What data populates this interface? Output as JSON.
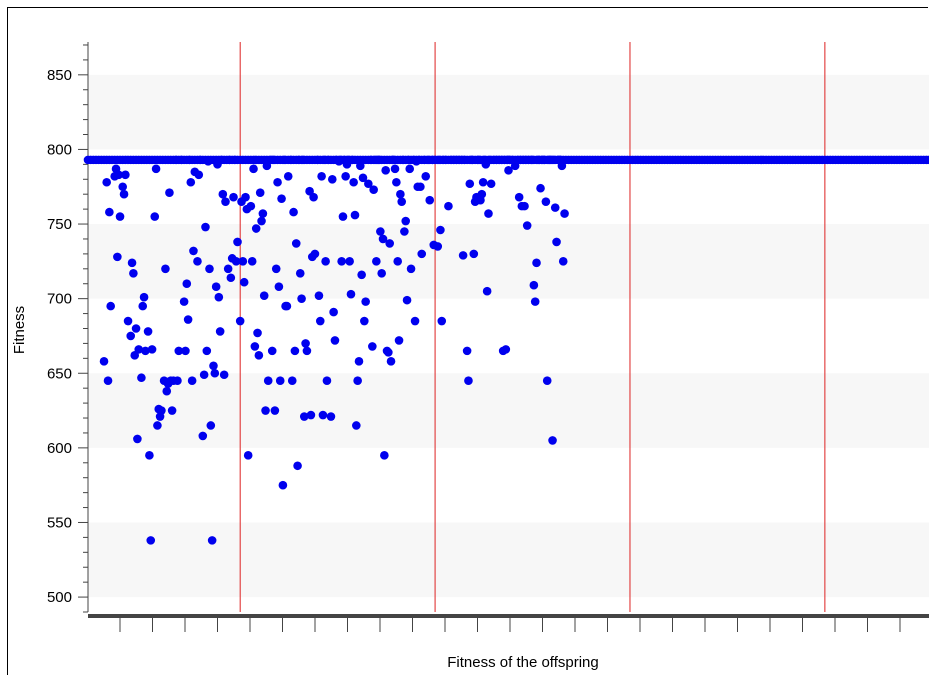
{
  "chart_data": {
    "type": "scatter",
    "title": "",
    "xlabel": "Fitness of the offspring",
    "ylabel": "Fitness",
    "ylim": [
      490,
      872
    ],
    "yticks": [
      500,
      550,
      600,
      650,
      700,
      750,
      800,
      850
    ],
    "grid": "alternating horizontal bands",
    "legend": "none",
    "colors": {
      "points": "#0000ee",
      "separators": "#dd2222",
      "band": "#f7f7f7",
      "axis": "#444444"
    },
    "separator_x": [
      114,
      260,
      406,
      552
    ],
    "xlim": [
      0,
      630
    ],
    "series": [
      {
        "points": [
          [
            12,
            658
          ],
          [
            15,
            645
          ],
          [
            14,
            778
          ],
          [
            16,
            758
          ],
          [
            17,
            695
          ],
          [
            20,
            782
          ],
          [
            21,
            787
          ],
          [
            22,
            728
          ],
          [
            23,
            783
          ],
          [
            24,
            755
          ],
          [
            26,
            775
          ],
          [
            27,
            770
          ],
          [
            28,
            783
          ],
          [
            30,
            685
          ],
          [
            32,
            675
          ],
          [
            33,
            724
          ],
          [
            34,
            717
          ],
          [
            35,
            662
          ],
          [
            36,
            680
          ],
          [
            37,
            606
          ],
          [
            38,
            666
          ],
          [
            40,
            647
          ],
          [
            41,
            695
          ],
          [
            42,
            701
          ],
          [
            43,
            665
          ],
          [
            45,
            678
          ],
          [
            46,
            595
          ],
          [
            47,
            538
          ],
          [
            48,
            666
          ],
          [
            50,
            755
          ],
          [
            51,
            787
          ],
          [
            52,
            615
          ],
          [
            53,
            626
          ],
          [
            54,
            621
          ],
          [
            55,
            625
          ],
          [
            57,
            645
          ],
          [
            58,
            720
          ],
          [
            59,
            638
          ],
          [
            60,
            643
          ],
          [
            61,
            771
          ],
          [
            62,
            645
          ],
          [
            63,
            625
          ],
          [
            64,
            645
          ],
          [
            66,
            793
          ],
          [
            67,
            645
          ],
          [
            68,
            665
          ],
          [
            70,
            793
          ],
          [
            72,
            698
          ],
          [
            73,
            665
          ],
          [
            74,
            710
          ],
          [
            75,
            686
          ],
          [
            76,
            793
          ],
          [
            77,
            778
          ],
          [
            78,
            645
          ],
          [
            79,
            732
          ],
          [
            80,
            785
          ],
          [
            82,
            725
          ],
          [
            83,
            783
          ],
          [
            84,
            793
          ],
          [
            86,
            608
          ],
          [
            87,
            649
          ],
          [
            88,
            748
          ],
          [
            89,
            665
          ],
          [
            90,
            792
          ],
          [
            91,
            720
          ],
          [
            92,
            615
          ],
          [
            93,
            538
          ],
          [
            94,
            655
          ],
          [
            95,
            650
          ],
          [
            96,
            708
          ],
          [
            97,
            790
          ],
          [
            98,
            701
          ],
          [
            99,
            678
          ],
          [
            100,
            793
          ],
          [
            101,
            770
          ],
          [
            102,
            649
          ],
          [
            103,
            765
          ],
          [
            105,
            720
          ],
          [
            106,
            793
          ],
          [
            107,
            714
          ],
          [
            108,
            727
          ],
          [
            109,
            768
          ],
          [
            110,
            793
          ],
          [
            111,
            725
          ],
          [
            112,
            738
          ],
          [
            114,
            685
          ],
          [
            115,
            765
          ],
          [
            116,
            725
          ],
          [
            117,
            711
          ],
          [
            118,
            768
          ],
          [
            119,
            760
          ],
          [
            120,
            595
          ],
          [
            122,
            762
          ],
          [
            123,
            725
          ],
          [
            124,
            787
          ],
          [
            125,
            668
          ],
          [
            126,
            747
          ],
          [
            127,
            677
          ],
          [
            128,
            662
          ],
          [
            129,
            771
          ],
          [
            130,
            752
          ],
          [
            131,
            757
          ],
          [
            132,
            702
          ],
          [
            133,
            625
          ],
          [
            134,
            789
          ],
          [
            135,
            645
          ],
          [
            137,
            793
          ],
          [
            138,
            665
          ],
          [
            139,
            793
          ],
          [
            140,
            625
          ],
          [
            141,
            720
          ],
          [
            142,
            778
          ],
          [
            143,
            708
          ],
          [
            144,
            645
          ],
          [
            145,
            767
          ],
          [
            146,
            575
          ],
          [
            147,
            793
          ],
          [
            148,
            695
          ],
          [
            149,
            695
          ],
          [
            150,
            782
          ],
          [
            152,
            793
          ],
          [
            153,
            645
          ],
          [
            154,
            758
          ],
          [
            155,
            665
          ],
          [
            156,
            737
          ],
          [
            157,
            588
          ],
          [
            158,
            793
          ],
          [
            159,
            717
          ],
          [
            160,
            700
          ],
          [
            161,
            793
          ],
          [
            162,
            621
          ],
          [
            163,
            670
          ],
          [
            164,
            665
          ],
          [
            166,
            772
          ],
          [
            167,
            622
          ],
          [
            168,
            728
          ],
          [
            169,
            768
          ],
          [
            170,
            730
          ],
          [
            172,
            793
          ],
          [
            173,
            702
          ],
          [
            174,
            685
          ],
          [
            175,
            782
          ],
          [
            176,
            622
          ],
          [
            177,
            793
          ],
          [
            178,
            725
          ],
          [
            179,
            645
          ],
          [
            180,
            793
          ],
          [
            182,
            621
          ],
          [
            183,
            780
          ],
          [
            184,
            691
          ],
          [
            185,
            672
          ],
          [
            186,
            793
          ],
          [
            188,
            792
          ],
          [
            189,
            793
          ],
          [
            190,
            725
          ],
          [
            191,
            755
          ],
          [
            192,
            793
          ],
          [
            193,
            782
          ],
          [
            194,
            790
          ],
          [
            195,
            793
          ],
          [
            196,
            725
          ],
          [
            197,
            703
          ],
          [
            198,
            793
          ],
          [
            199,
            778
          ],
          [
            200,
            756
          ],
          [
            201,
            615
          ],
          [
            202,
            645
          ],
          [
            203,
            658
          ],
          [
            204,
            789
          ],
          [
            205,
            716
          ],
          [
            206,
            781
          ],
          [
            207,
            685
          ],
          [
            208,
            698
          ],
          [
            210,
            777
          ],
          [
            212,
            793
          ],
          [
            213,
            668
          ],
          [
            214,
            773
          ],
          [
            215,
            793
          ],
          [
            216,
            725
          ],
          [
            217,
            793
          ],
          [
            218,
            793
          ],
          [
            219,
            745
          ],
          [
            220,
            717
          ],
          [
            221,
            740
          ],
          [
            222,
            595
          ],
          [
            223,
            786
          ],
          [
            224,
            665
          ],
          [
            225,
            664
          ],
          [
            226,
            737
          ],
          [
            227,
            658
          ],
          [
            228,
            793
          ],
          [
            229,
            793
          ],
          [
            230,
            787
          ],
          [
            231,
            778
          ],
          [
            232,
            725
          ],
          [
            233,
            672
          ],
          [
            234,
            770
          ],
          [
            235,
            765
          ],
          [
            236,
            793
          ],
          [
            237,
            745
          ],
          [
            238,
            752
          ],
          [
            239,
            699
          ],
          [
            240,
            793
          ],
          [
            241,
            787
          ],
          [
            242,
            720
          ],
          [
            244,
            793
          ],
          [
            245,
            685
          ],
          [
            246,
            792
          ],
          [
            247,
            775
          ],
          [
            248,
            793
          ],
          [
            249,
            775
          ],
          [
            250,
            730
          ],
          [
            252,
            793
          ],
          [
            253,
            782
          ],
          [
            255,
            793
          ],
          [
            256,
            766
          ],
          [
            258,
            793
          ],
          [
            259,
            736
          ],
          [
            260,
            793
          ],
          [
            262,
            735
          ],
          [
            263,
            793
          ],
          [
            264,
            746
          ],
          [
            265,
            685
          ],
          [
            266,
            793
          ],
          [
            268,
            793
          ],
          [
            270,
            762
          ],
          [
            272,
            793
          ],
          [
            274,
            793
          ],
          [
            276,
            793
          ],
          [
            278,
            793
          ],
          [
            280,
            793
          ],
          [
            281,
            729
          ],
          [
            282,
            793
          ],
          [
            284,
            665
          ],
          [
            285,
            645
          ],
          [
            286,
            777
          ],
          [
            287,
            793
          ],
          [
            288,
            793
          ],
          [
            289,
            730
          ],
          [
            290,
            765
          ],
          [
            291,
            768
          ],
          [
            292,
            793
          ],
          [
            293,
            793
          ],
          [
            294,
            766
          ],
          [
            295,
            770
          ],
          [
            296,
            778
          ],
          [
            297,
            793
          ],
          [
            298,
            790
          ],
          [
            299,
            705
          ],
          [
            300,
            757
          ],
          [
            301,
            793
          ],
          [
            302,
            777
          ],
          [
            304,
            793
          ],
          [
            306,
            793
          ],
          [
            308,
            793
          ],
          [
            310,
            793
          ],
          [
            311,
            665
          ],
          [
            312,
            793
          ],
          [
            313,
            666
          ],
          [
            314,
            793
          ],
          [
            315,
            786
          ],
          [
            316,
            793
          ],
          [
            318,
            793
          ],
          [
            320,
            789
          ],
          [
            322,
            793
          ],
          [
            323,
            768
          ],
          [
            324,
            793
          ],
          [
            325,
            762
          ],
          [
            326,
            793
          ],
          [
            327,
            762
          ],
          [
            328,
            793
          ],
          [
            329,
            749
          ],
          [
            330,
            793
          ],
          [
            332,
            793
          ],
          [
            333,
            793
          ],
          [
            334,
            709
          ],
          [
            335,
            698
          ],
          [
            336,
            724
          ],
          [
            337,
            793
          ],
          [
            338,
            793
          ],
          [
            339,
            774
          ],
          [
            340,
            793
          ],
          [
            341,
            793
          ],
          [
            342,
            793
          ],
          [
            343,
            765
          ],
          [
            344,
            645
          ],
          [
            345,
            793
          ],
          [
            346,
            793
          ],
          [
            347,
            793
          ],
          [
            348,
            605
          ],
          [
            349,
            793
          ],
          [
            350,
            761
          ],
          [
            351,
            738
          ],
          [
            352,
            793
          ],
          [
            353,
            793
          ],
          [
            354,
            793
          ],
          [
            355,
            789
          ],
          [
            356,
            725
          ],
          [
            357,
            757
          ]
        ]
      }
    ]
  }
}
